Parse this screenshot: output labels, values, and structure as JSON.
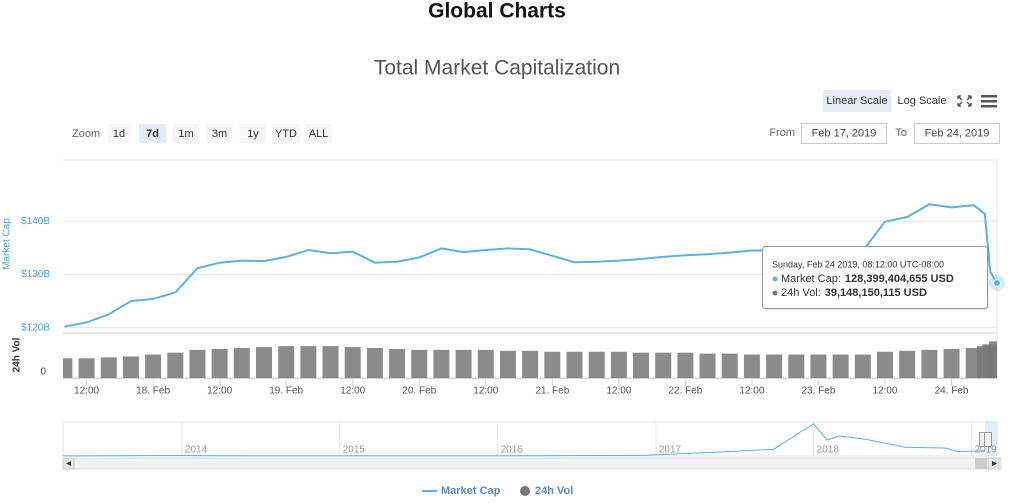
{
  "page_title": "Global Charts",
  "chart_data": {
    "type": "line",
    "title": "Total Market Capitalization",
    "scale_buttons": [
      "Linear Scale",
      "Log Scale"
    ],
    "scale_selected": 0,
    "zoom_label": "Zoom",
    "zoom_buttons": [
      "1d",
      "7d",
      "1m",
      "3m",
      "1y",
      "YTD",
      "ALL"
    ],
    "zoom_selected": 1,
    "from_label": "From",
    "from": "Feb 17, 2019",
    "to_label": "To",
    "to": "Feb 24, 2019",
    "x": [
      "2019-02-17 08:00",
      "2019-02-17 12:00",
      "2019-02-17 16:00",
      "2019-02-17 20:00",
      "2019-02-18 00:00",
      "2019-02-18 04:00",
      "2019-02-18 08:00",
      "2019-02-18 12:00",
      "2019-02-18 16:00",
      "2019-02-18 20:00",
      "2019-02-19 00:00",
      "2019-02-19 04:00",
      "2019-02-19 08:00",
      "2019-02-19 12:00",
      "2019-02-19 16:00",
      "2019-02-19 20:00",
      "2019-02-20 00:00",
      "2019-02-20 04:00",
      "2019-02-20 08:00",
      "2019-02-20 12:00",
      "2019-02-20 16:00",
      "2019-02-20 20:00",
      "2019-02-21 00:00",
      "2019-02-21 04:00",
      "2019-02-21 08:00",
      "2019-02-21 12:00",
      "2019-02-21 16:00",
      "2019-02-21 20:00",
      "2019-02-22 00:00",
      "2019-02-22 04:00",
      "2019-02-22 08:00",
      "2019-02-22 12:00",
      "2019-02-22 16:00",
      "2019-02-22 20:00",
      "2019-02-23 00:00",
      "2019-02-23 04:00",
      "2019-02-23 08:00",
      "2019-02-23 12:00",
      "2019-02-23 16:00",
      "2019-02-23 20:00",
      "2019-02-24 00:00",
      "2019-02-24 04:00",
      "2019-02-24 06:00",
      "2019-02-24 07:00",
      "2019-02-24 08:12"
    ],
    "xlim": [
      "2019-02-17 07:45",
      "2019-02-24 08:12"
    ],
    "xticks": [
      {
        "value": "2019-02-17 12:00",
        "label": "12:00"
      },
      {
        "value": "2019-02-18 00:00",
        "label": "18. Feb"
      },
      {
        "value": "2019-02-18 12:00",
        "label": "12:00"
      },
      {
        "value": "2019-02-19 00:00",
        "label": "19. Feb"
      },
      {
        "value": "2019-02-19 12:00",
        "label": "12:00"
      },
      {
        "value": "2019-02-20 00:00",
        "label": "20. Feb"
      },
      {
        "value": "2019-02-20 12:00",
        "label": "12:00"
      },
      {
        "value": "2019-02-21 00:00",
        "label": "21. Feb"
      },
      {
        "value": "2019-02-21 12:00",
        "label": "12:00"
      },
      {
        "value": "2019-02-22 00:00",
        "label": "22. Feb"
      },
      {
        "value": "2019-02-22 12:00",
        "label": "12:00"
      },
      {
        "value": "2019-02-23 00:00",
        "label": "23. Feb"
      },
      {
        "value": "2019-02-23 12:00",
        "label": "12:00"
      },
      {
        "value": "2019-02-24 00:00",
        "label": "24. Feb"
      }
    ],
    "ylabel": "Market Cap",
    "ylim": [
      119000000000,
      151500000000
    ],
    "yticks": [
      {
        "value": 120000000000,
        "label": "$120B"
      },
      {
        "value": 130000000000,
        "label": "$130B"
      },
      {
        "value": 140000000000,
        "label": "$140B"
      }
    ],
    "y2label": "24h Vol",
    "y2lim": [
      0,
      48000000000
    ],
    "y2ticks": [
      0
    ],
    "grid": true,
    "series": [
      {
        "name": "Market Cap",
        "color": "#5db2e0",
        "values": [
          120200000000,
          121000000000,
          122500000000,
          125000000000,
          125400000000,
          126600000000,
          131200000000,
          132200000000,
          132600000000,
          132500000000,
          133300000000,
          134600000000,
          134000000000,
          134300000000,
          132200000000,
          132400000000,
          133200000000,
          134900000000,
          134200000000,
          134600000000,
          134900000000,
          134700000000,
          133500000000,
          132300000000,
          132400000000,
          132600000000,
          132900000000,
          133300000000,
          133600000000,
          133800000000,
          134100000000,
          134500000000,
          134500000000,
          134200000000,
          134200000000,
          134300000000,
          134400000000,
          139900000000,
          140800000000,
          143200000000,
          142600000000,
          143000000000,
          141400000000,
          130500000000,
          128399404655
        ]
      },
      {
        "name": "24h Vol",
        "color": "#777777",
        "axis": "y2",
        "values": [
          21000000000,
          21000000000,
          22000000000,
          23000000000,
          25000000000,
          27000000000,
          30000000000,
          31000000000,
          32000000000,
          33000000000,
          34000000000,
          34000000000,
          34000000000,
          33000000000,
          32000000000,
          31000000000,
          30000000000,
          30000000000,
          30000000000,
          30000000000,
          29000000000,
          29000000000,
          28000000000,
          28000000000,
          28000000000,
          28000000000,
          27000000000,
          27000000000,
          27000000000,
          26000000000,
          26000000000,
          25000000000,
          25000000000,
          25000000000,
          25000000000,
          25000000000,
          25000000000,
          28000000000,
          29000000000,
          30000000000,
          31000000000,
          32000000000,
          34000000000,
          36000000000,
          39148150115
        ]
      }
    ],
    "tooltip": {
      "title": "Sunday, Feb 24 2019, 08:12:00 UTC-08:00",
      "index": 44,
      "lines": [
        {
          "label": "Market Cap:",
          "value": "128,399,404,655 USD"
        },
        {
          "label": "24h Vol:",
          "value": "39,148,150,115 USD"
        }
      ]
    },
    "navigator": {
      "x": [
        "2013-04",
        "2013-12",
        "2014-06",
        "2015-01",
        "2016-01",
        "2016-12",
        "2017-06",
        "2017-10",
        "2017-12",
        "2018-01",
        "2018-02",
        "2018-03",
        "2018-05",
        "2018-08",
        "2018-11",
        "2018-12",
        "2019-02"
      ],
      "values": [
        1500000000,
        13000000000,
        8000000000,
        4000000000,
        6000000000,
        14000000000,
        100000000000,
        170000000000,
        600000000000,
        800000000000,
        400000000000,
        500000000000,
        420000000000,
        220000000000,
        200000000000,
        110000000000,
        130000000000
      ],
      "xlim": [
        "2013-04",
        "2019-03"
      ],
      "ylim": [
        0,
        850000000000
      ],
      "xticks": [
        {
          "value": "2014-01",
          "label": "2014"
        },
        {
          "value": "2015-01",
          "label": "2015"
        },
        {
          "value": "2016-01",
          "label": "2016"
        },
        {
          "value": "2017-01",
          "label": "2017"
        },
        {
          "value": "2018-01",
          "label": "2018"
        },
        {
          "value": "2019-01",
          "label": "2019"
        }
      ]
    }
  }
}
